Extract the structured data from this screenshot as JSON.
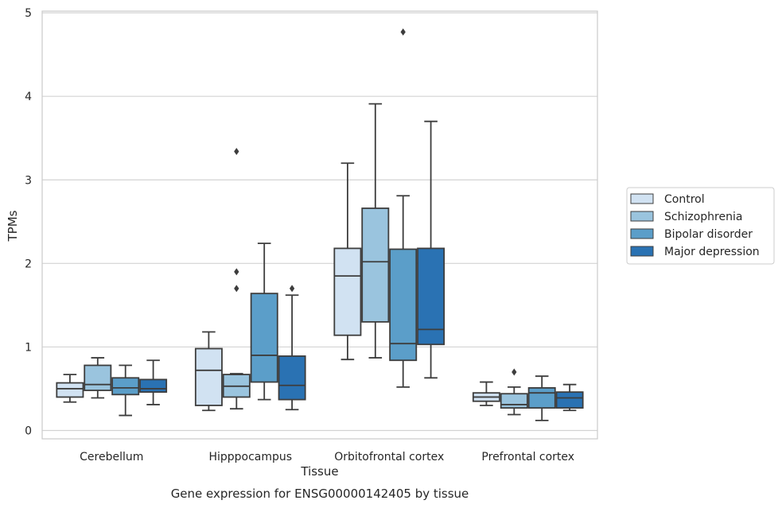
{
  "chart_data": {
    "type": "boxplot",
    "title": "Gene expression for ENSG00000142405 by tissue",
    "xlabel": "Tissue",
    "ylabel": "TPMs",
    "ylim": [
      -0.1,
      5.02
    ],
    "yticks": [
      0,
      1,
      2,
      3,
      4,
      5
    ],
    "grid": true,
    "legend_position": "right",
    "categories": [
      "Cerebellum",
      "Hipppocampus",
      "Orbitofrontal cortex",
      "Prefrontal cortex"
    ],
    "series": [
      {
        "name": "Control",
        "color": "#d1e2f2",
        "boxes": [
          {
            "whislo": 0.34,
            "q1": 0.4,
            "med": 0.5,
            "q3": 0.57,
            "whishi": 0.67,
            "fliers": []
          },
          {
            "whislo": 0.24,
            "q1": 0.3,
            "med": 0.72,
            "q3": 0.98,
            "whishi": 1.18,
            "fliers": []
          },
          {
            "whislo": 0.85,
            "q1": 1.14,
            "med": 1.85,
            "q3": 2.18,
            "whishi": 3.2,
            "fliers": []
          },
          {
            "whislo": 0.3,
            "q1": 0.35,
            "med": 0.4,
            "q3": 0.45,
            "whishi": 0.58,
            "fliers": []
          }
        ]
      },
      {
        "name": "Schizophrenia",
        "color": "#9ac4de",
        "boxes": [
          {
            "whislo": 0.39,
            "q1": 0.48,
            "med": 0.55,
            "q3": 0.78,
            "whishi": 0.87,
            "fliers": []
          },
          {
            "whislo": 0.26,
            "q1": 0.4,
            "med": 0.53,
            "q3": 0.67,
            "whishi": 0.68,
            "fliers": [
              1.7,
              1.9,
              3.34
            ]
          },
          {
            "whislo": 0.87,
            "q1": 1.3,
            "med": 2.02,
            "q3": 2.66,
            "whishi": 3.91,
            "fliers": []
          },
          {
            "whislo": 0.19,
            "q1": 0.27,
            "med": 0.31,
            "q3": 0.44,
            "whishi": 0.52,
            "fliers": [
              0.7
            ]
          }
        ]
      },
      {
        "name": "Bipolar disorder",
        "color": "#5b9ec9",
        "boxes": [
          {
            "whislo": 0.18,
            "q1": 0.43,
            "med": 0.51,
            "q3": 0.63,
            "whishi": 0.78,
            "fliers": []
          },
          {
            "whislo": 0.37,
            "q1": 0.58,
            "med": 0.9,
            "q3": 1.64,
            "whishi": 2.24,
            "fliers": []
          },
          {
            "whislo": 0.52,
            "q1": 0.84,
            "med": 1.04,
            "q3": 2.17,
            "whishi": 2.81,
            "fliers": [
              4.77
            ]
          },
          {
            "whislo": 0.12,
            "q1": 0.27,
            "med": 0.45,
            "q3": 0.51,
            "whishi": 0.65,
            "fliers": []
          }
        ]
      },
      {
        "name": "Major depression",
        "color": "#2a72b3",
        "boxes": [
          {
            "whislo": 0.31,
            "q1": 0.46,
            "med": 0.5,
            "q3": 0.61,
            "whishi": 0.84,
            "fliers": []
          },
          {
            "whislo": 0.25,
            "q1": 0.37,
            "med": 0.54,
            "q3": 0.89,
            "whishi": 1.62,
            "fliers": [
              1.7
            ]
          },
          {
            "whislo": 0.63,
            "q1": 1.03,
            "med": 1.21,
            "q3": 2.18,
            "whishi": 3.7,
            "fliers": []
          },
          {
            "whislo": 0.24,
            "q1": 0.27,
            "med": 0.39,
            "q3": 0.46,
            "whishi": 0.55,
            "fliers": []
          }
        ]
      }
    ]
  }
}
